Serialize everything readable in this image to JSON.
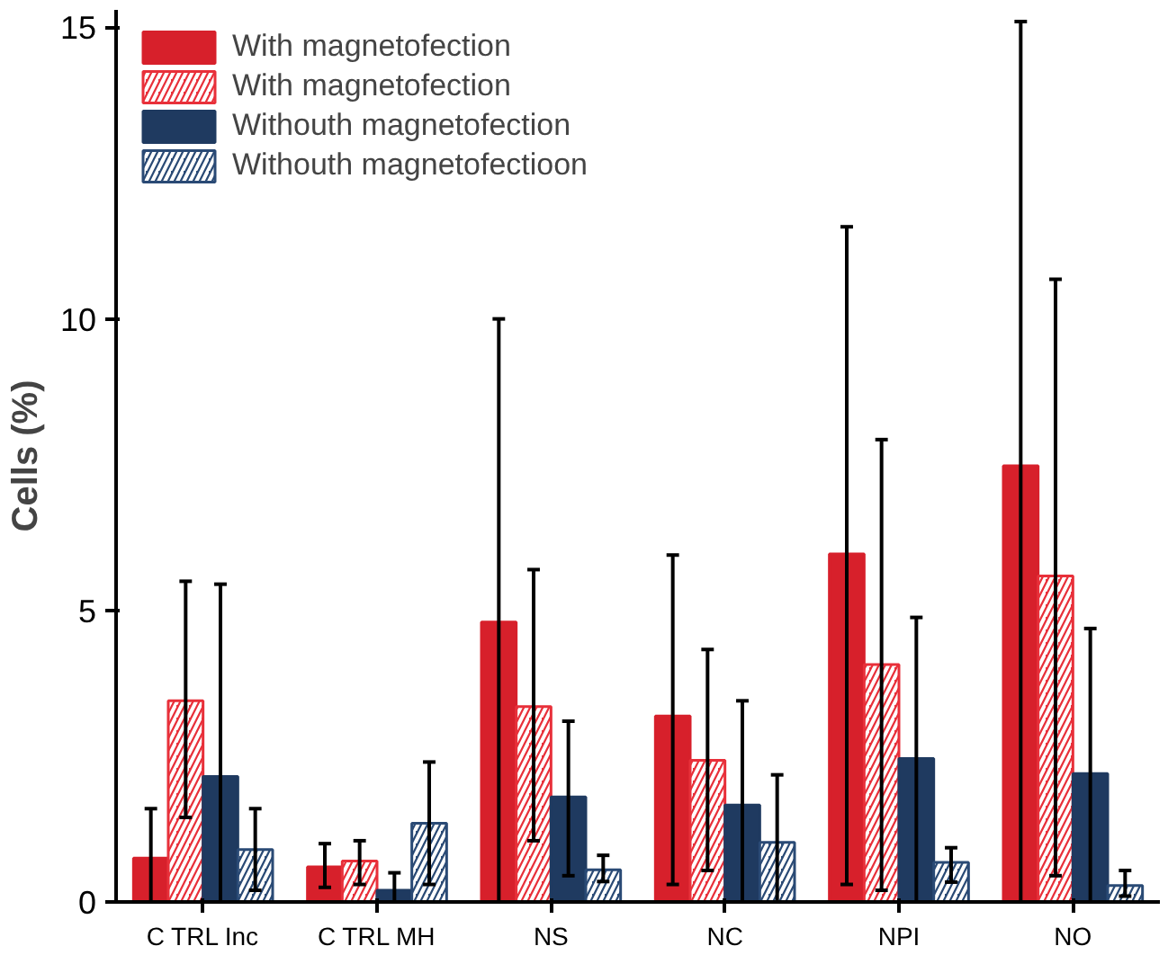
{
  "chart_data": {
    "type": "bar",
    "ylabel": "Cells (%)",
    "categories": [
      "C TRL Inc",
      "C TRL MH",
      "NS",
      "NC",
      "NPI",
      "NO"
    ],
    "series": [
      {
        "name": "With magnetofection",
        "color": "#d7202b",
        "values": [
          0.75,
          0.6,
          4.8,
          3.19,
          5.97,
          7.48
        ],
        "errors": [
          [
            0,
            1.6
          ],
          [
            0.25,
            1.0
          ],
          [
            0,
            10.0
          ],
          [
            0.3,
            5.95
          ],
          [
            0.3,
            11.58
          ],
          [
            0,
            15.1
          ]
        ]
      },
      {
        "name": "With magnetofection",
        "color": "#e8303a",
        "values": [
          3.45,
          0.7,
          3.35,
          2.43,
          4.07,
          5.59
        ],
        "errors": [
          [
            1.45,
            5.5
          ],
          [
            0.3,
            1.05
          ],
          [
            1.05,
            5.7
          ],
          [
            0.54,
            4.33
          ],
          [
            0.2,
            7.93
          ],
          [
            0.45,
            10.68
          ]
        ]
      },
      {
        "name": "Withouth magnetofection",
        "color": "#1f3a60",
        "values": [
          2.15,
          0.2,
          1.8,
          1.66,
          2.46,
          2.2
        ],
        "errors": [
          [
            0,
            5.45
          ],
          [
            0,
            0.5
          ],
          [
            0.45,
            3.1
          ],
          [
            0,
            3.45
          ],
          [
            0,
            4.88
          ],
          [
            0,
            4.69
          ]
        ]
      },
      {
        "name": "Withouth magnetofectioon",
        "color": "#2a4a75",
        "values": [
          0.9,
          1.35,
          0.55,
          1.02,
          0.68,
          0.28
        ],
        "errors": [
          [
            0.2,
            1.6
          ],
          [
            0.3,
            2.4
          ],
          [
            0.35,
            0.8
          ],
          [
            0,
            2.18
          ],
          [
            0.34,
            0.93
          ],
          [
            0.1,
            0.54
          ]
        ]
      }
    ],
    "ylim": [
      0,
      15.3
    ],
    "yticks": [
      0,
      5,
      10,
      15
    ],
    "grid": false,
    "legend": "top left"
  }
}
